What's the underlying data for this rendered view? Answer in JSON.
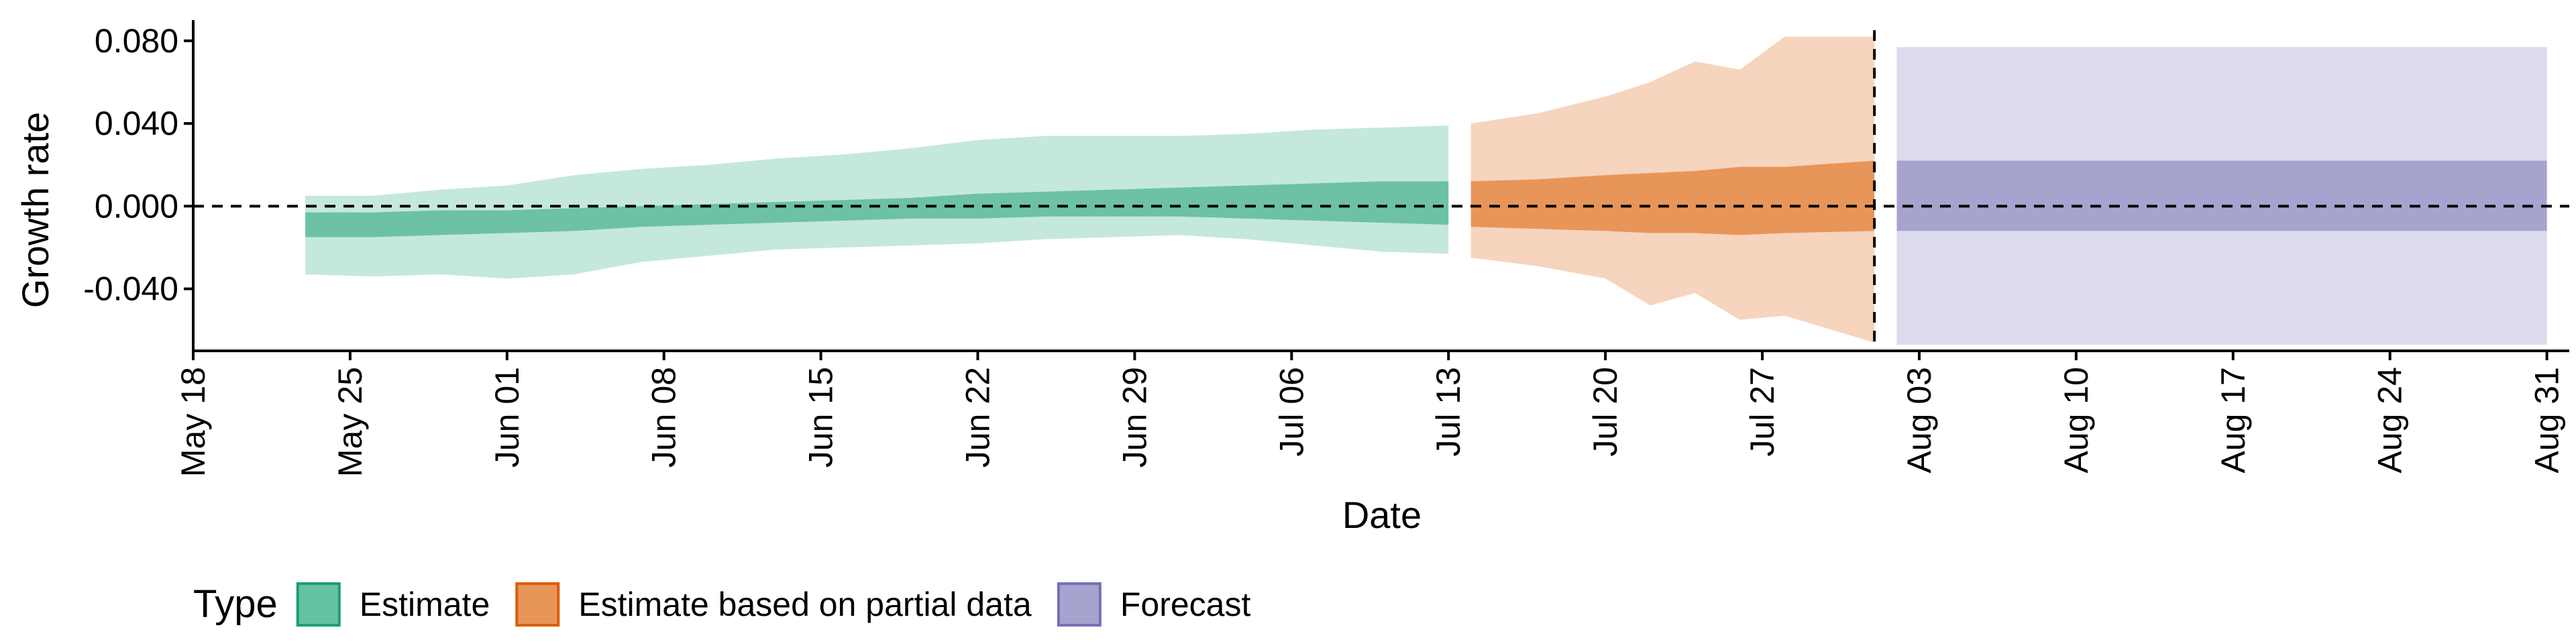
{
  "chart_data": {
    "type": "area",
    "xlabel": "Date",
    "ylabel": "Growth rate",
    "x_axis": {
      "type": "date",
      "range": [
        "2020-05-18",
        "2020-09-01"
      ],
      "ticks": [
        {
          "date": "2020-05-18",
          "label": "May 18"
        },
        {
          "date": "2020-05-25",
          "label": "May 25"
        },
        {
          "date": "2020-06-01",
          "label": "Jun 01"
        },
        {
          "date": "2020-06-08",
          "label": "Jun 08"
        },
        {
          "date": "2020-06-15",
          "label": "Jun 15"
        },
        {
          "date": "2020-06-22",
          "label": "Jun 22"
        },
        {
          "date": "2020-06-29",
          "label": "Jun 29"
        },
        {
          "date": "2020-07-06",
          "label": "Jul 06"
        },
        {
          "date": "2020-07-13",
          "label": "Jul 13"
        },
        {
          "date": "2020-07-20",
          "label": "Jul 20"
        },
        {
          "date": "2020-07-27",
          "label": "Jul 27"
        },
        {
          "date": "2020-08-03",
          "label": "Aug 03"
        },
        {
          "date": "2020-08-10",
          "label": "Aug 10"
        },
        {
          "date": "2020-08-17",
          "label": "Aug 17"
        },
        {
          "date": "2020-08-24",
          "label": "Aug 24"
        },
        {
          "date": "2020-08-31",
          "label": "Aug 31"
        }
      ]
    },
    "y_axis": {
      "range": [
        -0.07,
        0.09
      ],
      "ticks": [
        {
          "value": 0.08,
          "label": "0.080"
        },
        {
          "value": 0.04,
          "label": "0.040"
        },
        {
          "value": 0.0,
          "label": "0.000"
        },
        {
          "value": -0.04,
          "label": "-0.040"
        }
      ]
    },
    "reference_lines": {
      "horizontal_y": 0.0,
      "vertical_date": "2020-08-01",
      "style": "dashed"
    },
    "legend": {
      "title": "Type",
      "position": "bottom-left",
      "items": [
        {
          "label": "Estimate",
          "fill": "#66c2a5",
          "stroke": "#1b9e77"
        },
        {
          "label": "Estimate based on partial data",
          "fill": "#e8955a",
          "stroke": "#d95f02"
        },
        {
          "label": "Forecast",
          "fill": "#a7a3cf",
          "stroke": "#7570b3"
        }
      ]
    },
    "series": [
      {
        "name": "Estimate",
        "outer_color": "#c5e8dc",
        "inner_color": "#6cc2a3",
        "points": [
          {
            "date": "2020-05-23",
            "outer": [
              -0.033,
              0.005
            ],
            "inner": [
              -0.015,
              -0.003
            ]
          },
          {
            "date": "2020-05-26",
            "outer": [
              -0.034,
              0.005
            ],
            "inner": [
              -0.015,
              -0.003
            ]
          },
          {
            "date": "2020-05-29",
            "outer": [
              -0.033,
              0.008
            ],
            "inner": [
              -0.014,
              -0.002
            ]
          },
          {
            "date": "2020-06-01",
            "outer": [
              -0.035,
              0.01
            ],
            "inner": [
              -0.013,
              -0.002
            ]
          },
          {
            "date": "2020-06-04",
            "outer": [
              -0.033,
              0.015
            ],
            "inner": [
              -0.012,
              -0.001
            ]
          },
          {
            "date": "2020-06-07",
            "outer": [
              -0.027,
              0.018
            ],
            "inner": [
              -0.01,
              0.0
            ]
          },
          {
            "date": "2020-06-10",
            "outer": [
              -0.024,
              0.02
            ],
            "inner": [
              -0.009,
              0.001
            ]
          },
          {
            "date": "2020-06-13",
            "outer": [
              -0.021,
              0.023
            ],
            "inner": [
              -0.008,
              0.002
            ]
          },
          {
            "date": "2020-06-16",
            "outer": [
              -0.02,
              0.025
            ],
            "inner": [
              -0.007,
              0.003
            ]
          },
          {
            "date": "2020-06-19",
            "outer": [
              -0.019,
              0.028
            ],
            "inner": [
              -0.006,
              0.004
            ]
          },
          {
            "date": "2020-06-22",
            "outer": [
              -0.018,
              0.032
            ],
            "inner": [
              -0.006,
              0.006
            ]
          },
          {
            "date": "2020-06-25",
            "outer": [
              -0.016,
              0.034
            ],
            "inner": [
              -0.005,
              0.007
            ]
          },
          {
            "date": "2020-06-28",
            "outer": [
              -0.015,
              0.034
            ],
            "inner": [
              -0.005,
              0.008
            ]
          },
          {
            "date": "2020-07-01",
            "outer": [
              -0.014,
              0.034
            ],
            "inner": [
              -0.005,
              0.009
            ]
          },
          {
            "date": "2020-07-04",
            "outer": [
              -0.016,
              0.035
            ],
            "inner": [
              -0.006,
              0.01
            ]
          },
          {
            "date": "2020-07-07",
            "outer": [
              -0.019,
              0.037
            ],
            "inner": [
              -0.007,
              0.011
            ]
          },
          {
            "date": "2020-07-10",
            "outer": [
              -0.022,
              0.038
            ],
            "inner": [
              -0.008,
              0.012
            ]
          },
          {
            "date": "2020-07-13",
            "outer": [
              -0.023,
              0.039
            ],
            "inner": [
              -0.009,
              0.012
            ]
          }
        ]
      },
      {
        "name": "Estimate based on partial data",
        "outer_color": "#f6d4bd",
        "inner_color": "#e8955a",
        "points": [
          {
            "date": "2020-07-14",
            "outer": [
              -0.025,
              0.04
            ],
            "inner": [
              -0.01,
              0.012
            ]
          },
          {
            "date": "2020-07-17",
            "outer": [
              -0.029,
              0.045
            ],
            "inner": [
              -0.011,
              0.013
            ]
          },
          {
            "date": "2020-07-20",
            "outer": [
              -0.035,
              0.053
            ],
            "inner": [
              -0.012,
              0.015
            ]
          },
          {
            "date": "2020-07-22",
            "outer": [
              -0.048,
              0.06
            ],
            "inner": [
              -0.013,
              0.016
            ]
          },
          {
            "date": "2020-07-24",
            "outer": [
              -0.042,
              0.07
            ],
            "inner": [
              -0.013,
              0.017
            ]
          },
          {
            "date": "2020-07-26",
            "outer": [
              -0.055,
              0.066
            ],
            "inner": [
              -0.014,
              0.019
            ]
          },
          {
            "date": "2020-07-28",
            "outer": [
              -0.053,
              0.082
            ],
            "inner": [
              -0.013,
              0.019
            ]
          },
          {
            "date": "2020-08-01",
            "outer": [
              -0.066,
              0.082
            ],
            "inner": [
              -0.012,
              0.022
            ]
          }
        ]
      },
      {
        "name": "Forecast",
        "outer_color": "#dcdbec",
        "inner_color": "#a7a3cf",
        "points": [
          {
            "date": "2020-08-02",
            "outer": [
              -0.067,
              0.077
            ],
            "inner": [
              -0.012,
              0.022
            ]
          },
          {
            "date": "2020-08-31",
            "outer": [
              -0.067,
              0.077
            ],
            "inner": [
              -0.012,
              0.022
            ]
          }
        ]
      }
    ]
  }
}
